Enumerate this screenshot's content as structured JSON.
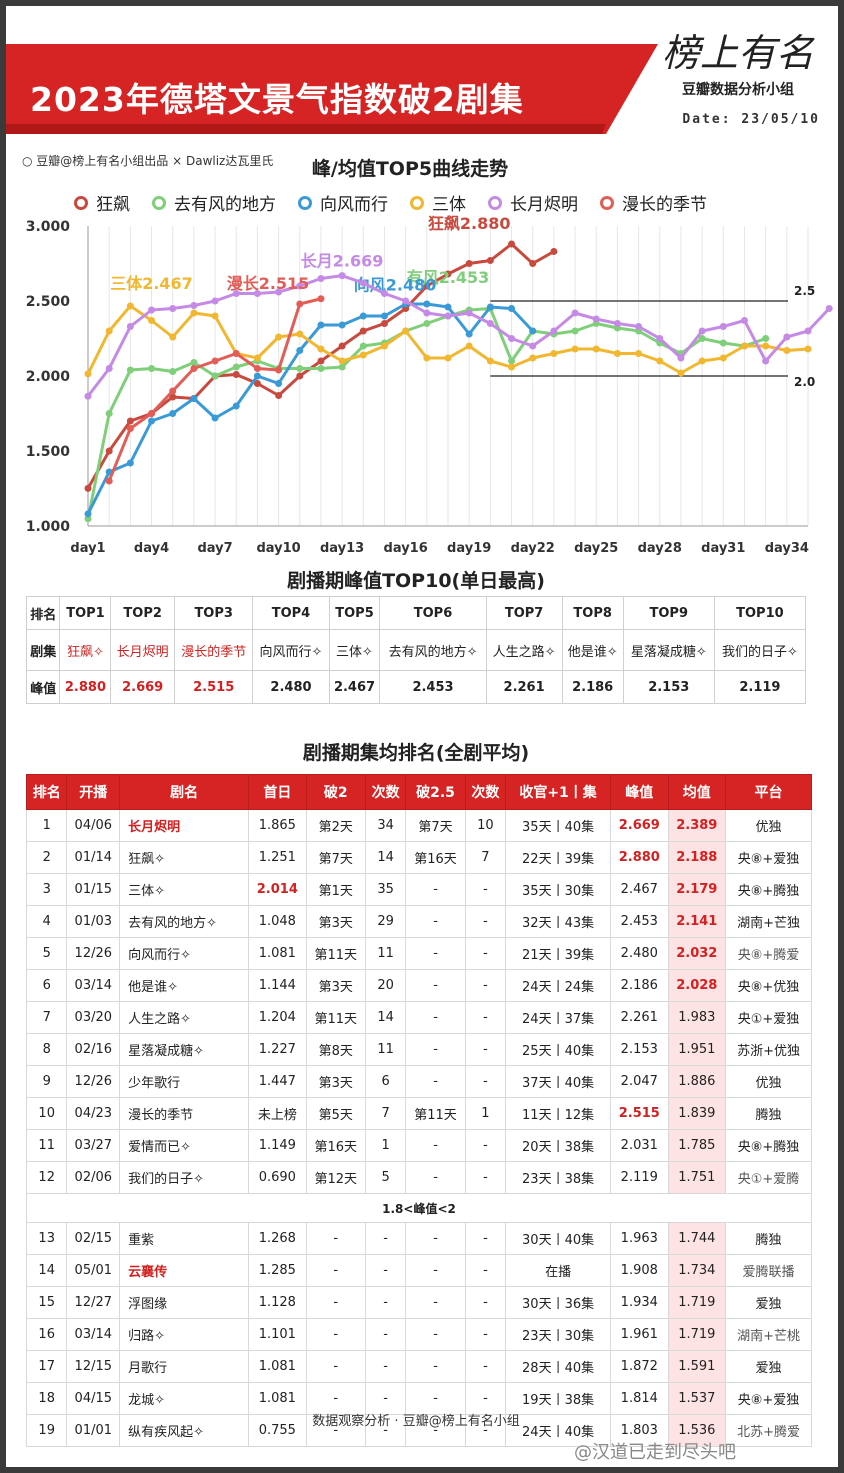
{
  "header": {
    "title": "2023年德塔文景气指数破2剧集",
    "logo": "榜上有名",
    "logo_sub": "豆瓣数据分析小组",
    "date": "Date: 23/05/10",
    "credit": "○ 豆瓣@榜上有名小组出品 × Dawliz达瓦里氏"
  },
  "colors": {
    "brand_red": "#d62424",
    "狂飙": "#c84a3e",
    "去有风的地方": "#7fcf7a",
    "向风而行": "#3a9ad8",
    "三体": "#f2b731",
    "长月烬明": "#c58ae6",
    "漫长的季节": "#e35d57"
  },
  "chart_data": {
    "type": "line",
    "title": "峰/均值TOP5曲线走势",
    "ylim": [
      1.0,
      3.0
    ],
    "yticks": [
      "1.000",
      "1.500",
      "2.000",
      "2.500",
      "3.000"
    ],
    "xticks": [
      "day1",
      "day4",
      "day7",
      "day10",
      "day13",
      "day16",
      "day19",
      "day22",
      "day25",
      "day28",
      "day31",
      "day34"
    ],
    "x_range": [
      1,
      35
    ],
    "ref_lines": [
      {
        "value": 2.5,
        "label": "2.5"
      },
      {
        "value": 2.0,
        "label": "2.0"
      }
    ],
    "series": [
      {
        "name": "狂飙",
        "color": "#c84a3e",
        "peak_label": "狂飙2.880",
        "values": [
          1.251,
          1.5,
          1.7,
          1.75,
          1.86,
          1.85,
          2.0,
          2.01,
          1.95,
          1.87,
          2.0,
          2.1,
          2.2,
          2.3,
          2.35,
          2.45,
          2.6,
          2.68,
          2.75,
          2.77,
          2.88,
          2.75,
          2.83
        ]
      },
      {
        "name": "去有风的地方",
        "color": "#7fcf7a",
        "peak_label": "有风2.453",
        "values": [
          1.048,
          1.75,
          2.04,
          2.05,
          2.03,
          2.09,
          2.0,
          2.06,
          2.1,
          2.05,
          2.05,
          2.05,
          2.06,
          2.2,
          2.22,
          2.3,
          2.35,
          2.4,
          2.44,
          2.45,
          2.1,
          2.3,
          2.28,
          2.3,
          2.35,
          2.32,
          2.3,
          2.22,
          2.15,
          2.25,
          2.22,
          2.2,
          2.25
        ]
      },
      {
        "name": "向风而行",
        "color": "#3a9ad8",
        "peak_label": "向风2.480",
        "values": [
          1.081,
          1.36,
          1.42,
          1.7,
          1.75,
          1.85,
          1.72,
          1.8,
          2.0,
          1.95,
          2.17,
          2.34,
          2.34,
          2.4,
          2.4,
          2.48,
          2.48,
          2.46,
          2.28,
          2.46,
          2.45,
          2.3
        ]
      },
      {
        "name": "三体",
        "color": "#f2b731",
        "peak_label": "三体2.467",
        "values": [
          2.014,
          2.3,
          2.467,
          2.37,
          2.26,
          2.42,
          2.4,
          2.15,
          2.12,
          2.26,
          2.28,
          2.18,
          2.1,
          2.14,
          2.2,
          2.3,
          2.12,
          2.12,
          2.2,
          2.1,
          2.06,
          2.12,
          2.15,
          2.18,
          2.18,
          2.15,
          2.15,
          2.1,
          2.02,
          2.1,
          2.12,
          2.2,
          2.2,
          2.17,
          2.18
        ]
      },
      {
        "name": "长月烬明",
        "color": "#c58ae6",
        "peak_label": "长月2.669",
        "values": [
          1.865,
          2.05,
          2.33,
          2.44,
          2.45,
          2.47,
          2.5,
          2.55,
          2.55,
          2.56,
          2.6,
          2.65,
          2.669,
          2.62,
          2.55,
          2.5,
          2.42,
          2.4,
          2.42,
          2.35,
          2.25,
          2.2,
          2.3,
          2.42,
          2.38,
          2.35,
          2.33,
          2.25,
          2.12,
          2.3,
          2.33,
          2.37,
          2.1,
          2.26,
          2.3,
          2.45
        ]
      },
      {
        "name": "漫长的季节",
        "color": "#e35d57",
        "peak_label": "漫长2.515",
        "start_day": 2,
        "values": [
          1.3,
          1.65,
          1.75,
          1.9,
          2.05,
          2.1,
          2.15,
          2.05,
          2.04,
          2.48,
          2.515
        ]
      }
    ]
  },
  "top10": {
    "title": "剧播期峰值TOP10(单日最高)",
    "row_labels": [
      "排名",
      "剧集",
      "峰值"
    ],
    "ranks": [
      "TOP1",
      "TOP2",
      "TOP3",
      "TOP4",
      "TOP5",
      "TOP6",
      "TOP7",
      "TOP8",
      "TOP9",
      "TOP10"
    ],
    "shows": [
      "狂飙✧",
      "长月烬明",
      "漫长的季节",
      "向风而行✧",
      "三体✧",
      "去有风的地方✧",
      "人生之路✧",
      "他是谁✧",
      "星落凝成糖✧",
      "我们的日子✧"
    ],
    "peaks": [
      "2.880",
      "2.669",
      "2.515",
      "2.480",
      "2.467",
      "2.453",
      "2.261",
      "2.186",
      "2.153",
      "2.119"
    ]
  },
  "avg_rank": {
    "title": "剧播期集均排名(全剧平均)",
    "headers": [
      "排名",
      "开播",
      "剧名",
      "首日",
      "破2",
      "次数",
      "破2.5",
      "次数",
      "收官+1丨集",
      "峰值",
      "均值",
      "平台"
    ],
    "rows": [
      [
        "1",
        "04/06",
        "长月烬明",
        "1.865",
        "第2天",
        "34",
        "第7天",
        "10",
        "35天丨40集",
        "2.669",
        "2.389",
        "优独"
      ],
      [
        "2",
        "01/14",
        "狂飙✧",
        "1.251",
        "第7天",
        "14",
        "第16天",
        "7",
        "22天丨39集",
        "2.880",
        "2.188",
        "央⑧+爱独"
      ],
      [
        "3",
        "01/15",
        "三体✧",
        "2.014",
        "第1天",
        "35",
        "-",
        "-",
        "35天丨30集",
        "2.467",
        "2.179",
        "央⑧+腾独"
      ],
      [
        "4",
        "01/03",
        "去有风的地方✧",
        "1.048",
        "第3天",
        "29",
        "-",
        "-",
        "32天丨43集",
        "2.453",
        "2.141",
        "湖南+芒独"
      ],
      [
        "5",
        "12/26",
        "向风而行✧",
        "1.081",
        "第11天",
        "11",
        "-",
        "-",
        "21天丨39集",
        "2.480",
        "2.032",
        "央⑧+腾爱"
      ],
      [
        "6",
        "03/14",
        "他是谁✧",
        "1.144",
        "第3天",
        "20",
        "-",
        "-",
        "24天丨24集",
        "2.186",
        "2.028",
        "央⑧+优独"
      ],
      [
        "7",
        "03/20",
        "人生之路✧",
        "1.204",
        "第11天",
        "14",
        "-",
        "-",
        "24天丨37集",
        "2.261",
        "1.983",
        "央①+爱独"
      ],
      [
        "8",
        "02/16",
        "星落凝成糖✧",
        "1.227",
        "第8天",
        "11",
        "-",
        "-",
        "25天丨40集",
        "2.153",
        "1.951",
        "苏浙+优独"
      ],
      [
        "9",
        "12/26",
        "少年歌行",
        "1.447",
        "第3天",
        "6",
        "-",
        "-",
        "37天丨40集",
        "2.047",
        "1.886",
        "优独"
      ],
      [
        "10",
        "04/23",
        "漫长的季节",
        "未上榜",
        "第5天",
        "7",
        "第11天",
        "1",
        "11天丨12集",
        "2.515",
        "1.839",
        "腾独"
      ],
      [
        "11",
        "03/27",
        "爱情而已✧",
        "1.149",
        "第16天",
        "1",
        "-",
        "-",
        "20天丨38集",
        "2.031",
        "1.785",
        "央⑧+腾独"
      ],
      [
        "12",
        "02/06",
        "我们的日子✧",
        "0.690",
        "第12天",
        "5",
        "-",
        "-",
        "23天丨38集",
        "2.119",
        "1.751",
        "央①+爱腾"
      ]
    ],
    "separator": "1.8<峰值<2",
    "rows2": [
      [
        "13",
        "02/15",
        "重紫",
        "1.268",
        "-",
        "-",
        "-",
        "-",
        "30天丨40集",
        "1.963",
        "1.744",
        "腾独"
      ],
      [
        "14",
        "05/01",
        "云襄传",
        "1.285",
        "-",
        "-",
        "-",
        "-",
        "在播",
        "1.908",
        "1.734",
        "爱腾联播"
      ],
      [
        "15",
        "12/27",
        "浮图缘",
        "1.128",
        "-",
        "-",
        "-",
        "-",
        "30天丨36集",
        "1.934",
        "1.719",
        "爱独"
      ],
      [
        "16",
        "03/14",
        "归路✧",
        "1.101",
        "-",
        "-",
        "-",
        "-",
        "23天丨30集",
        "1.961",
        "1.719",
        "湖南+芒桃"
      ],
      [
        "17",
        "12/15",
        "月歌行",
        "1.081",
        "-",
        "-",
        "-",
        "-",
        "28天丨40集",
        "1.872",
        "1.591",
        "爱独"
      ],
      [
        "18",
        "04/15",
        "龙城✧",
        "1.081",
        "-",
        "-",
        "-",
        "-",
        "19天丨38集",
        "1.814",
        "1.537",
        "央⑧+爱独"
      ],
      [
        "19",
        "01/01",
        "纵有疾风起✧",
        "0.755",
        "-",
        "-",
        "-",
        "-",
        "24天丨40集",
        "1.803",
        "1.536",
        "北苏+腾爱"
      ]
    ]
  },
  "footer": "数据观察分析 · 豆瓣@榜上有名小组",
  "watermark": "@汉道已走到尽头吧"
}
